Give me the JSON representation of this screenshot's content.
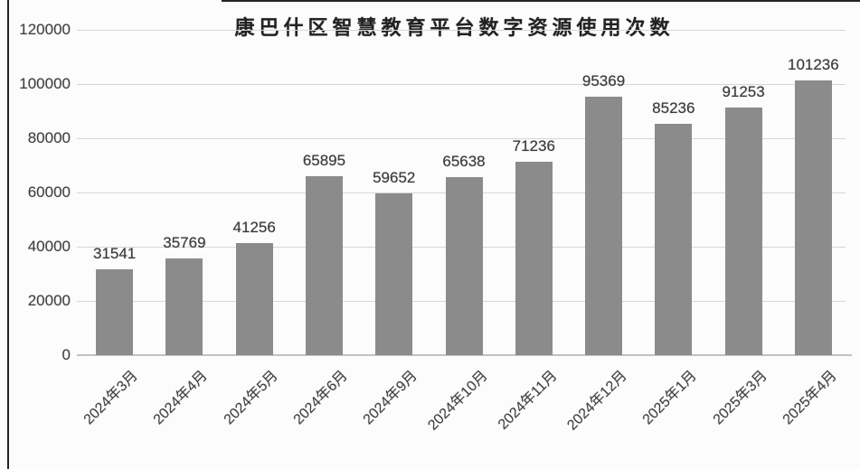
{
  "chart_data": {
    "type": "bar",
    "title": "康巴什区智慧教育平台数字资源使用次数",
    "categories": [
      "2024年3月",
      "2024年4月",
      "2024年5月",
      "2024年6月",
      "2024年9月",
      "2024年10月",
      "2024年11月",
      "2024年12月",
      "2025年1月",
      "2025年3月",
      "2025年4月"
    ],
    "values": [
      31541,
      35769,
      41256,
      65895,
      59652,
      65638,
      71236,
      95369,
      85236,
      91253,
      101236
    ],
    "data_labels": [
      "31541",
      "35769",
      "41256",
      "65895",
      "59652",
      "65638",
      "71236",
      "95369",
      "85236",
      "91253",
      "101236"
    ],
    "yticks": [
      0,
      20000,
      40000,
      60000,
      80000,
      100000,
      120000
    ],
    "ytick_labels": [
      "0",
      "20000",
      "40000",
      "60000",
      "80000",
      "100000",
      "120000"
    ],
    "ylim": [
      0,
      120000
    ],
    "xlabel": "",
    "ylabel": "",
    "grid": true,
    "legend": false,
    "x_label_rotation_deg": 45,
    "bar_color": "#8b8b8b",
    "gridline_color": "#d6d6d6",
    "axis_line_color": "#c2c2c2",
    "text_color": "#3f3f3f"
  }
}
